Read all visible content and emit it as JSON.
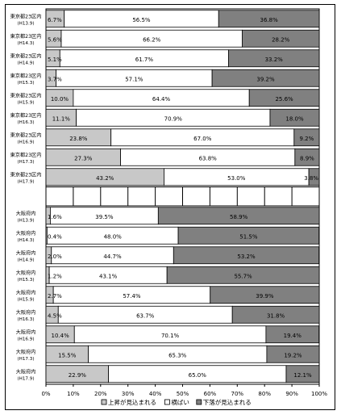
{
  "colors": {
    "rise": "#c8c8c8",
    "flat": "#ffffff",
    "fall": "#808080",
    "stroke": "#000000"
  },
  "chart_data": {
    "type": "bar",
    "orientation": "horizontal",
    "stacked": true,
    "xlim": [
      0,
      100
    ],
    "x_ticks": [
      "0%",
      "10%",
      "20%",
      "30%",
      "40%",
      "50%",
      "60%",
      "70%",
      "80%",
      "90%",
      "100%"
    ],
    "grid": false,
    "legend_position": "bottom",
    "groups": [
      {
        "rows": [
          {
            "label_main": "東京都23区内",
            "label_sub": "(H13.9)",
            "values": [
              6.7,
              56.5,
              36.8
            ],
            "labels": [
              "6.7%",
              "56.5%",
              "36.8%"
            ]
          },
          {
            "label_main": "東京都23区内",
            "label_sub": "(H14.3)",
            "values": [
              5.6,
              66.2,
              28.2
            ],
            "labels": [
              "5.6%",
              "66.2%",
              "28.2%"
            ]
          },
          {
            "label_main": "東京都23区内",
            "label_sub": "(H14.9)",
            "values": [
              5.1,
              61.7,
              33.2
            ],
            "labels": [
              "5.1%",
              "61.7%",
              "33.2%"
            ]
          },
          {
            "label_main": "東京都23区内",
            "label_sub": "(H15.3)",
            "values": [
              3.7,
              57.1,
              39.2
            ],
            "labels": [
              "3.7%",
              "57.1%",
              "39.2%"
            ]
          },
          {
            "label_main": "東京都23区内",
            "label_sub": "(H15.9)",
            "values": [
              10.0,
              64.4,
              25.6
            ],
            "labels": [
              "10.0%",
              "64.4%",
              "25.6%"
            ]
          },
          {
            "label_main": "東京都23区内",
            "label_sub": "(H16.3)",
            "values": [
              11.1,
              70.9,
              18.0
            ],
            "labels": [
              "11.1%",
              "70.9%",
              "18.0%"
            ]
          },
          {
            "label_main": "東京都23区内",
            "label_sub": "(H16.9)",
            "values": [
              23.8,
              67.0,
              9.2
            ],
            "labels": [
              "23.8%",
              "67.0%",
              "9.2%"
            ]
          },
          {
            "label_main": "東京都23区内",
            "label_sub": "(H17.3)",
            "values": [
              27.3,
              63.8,
              8.9
            ],
            "labels": [
              "27.3%",
              "63.8%",
              "8.9%"
            ]
          },
          {
            "label_main": "東京都23区内",
            "label_sub": "(H17.9)",
            "values": [
              43.2,
              53.0,
              3.8
            ],
            "labels": [
              "43.2%",
              "53.0%",
              "3.8%"
            ]
          }
        ]
      },
      {
        "rows": [
          {
            "label_main": "大阪府内",
            "label_sub": "(H13.9)",
            "values": [
              1.6,
              39.5,
              58.9
            ],
            "labels": [
              "1.6%",
              "39.5%",
              "58.9%"
            ]
          },
          {
            "label_main": "大阪府内",
            "label_sub": "(H14.3)",
            "values": [
              0.4,
              48.0,
              51.5
            ],
            "labels": [
              "0.4%",
              "48.0%",
              "51.5%"
            ]
          },
          {
            "label_main": "大阪府内",
            "label_sub": "(H14.9)",
            "values": [
              2.0,
              44.7,
              53.2
            ],
            "labels": [
              "2.0%",
              "44.7%",
              "53.2%"
            ]
          },
          {
            "label_main": "大阪府内",
            "label_sub": "(H15.3)",
            "values": [
              1.2,
              43.1,
              55.7
            ],
            "labels": [
              "1.2%",
              "43.1%",
              "55.7%"
            ]
          },
          {
            "label_main": "大阪府内",
            "label_sub": "(H15.9)",
            "values": [
              2.7,
              57.4,
              39.9
            ],
            "labels": [
              "2.7%",
              "57.4%",
              "39.9%"
            ]
          },
          {
            "label_main": "大阪府内",
            "label_sub": "(H16.3)",
            "values": [
              4.5,
              63.7,
              31.8
            ],
            "labels": [
              "4.5%",
              "63.7%",
              "31.8%"
            ]
          },
          {
            "label_main": "大阪府内",
            "label_sub": "(H16.9)",
            "values": [
              10.4,
              70.1,
              19.4
            ],
            "labels": [
              "10.4%",
              "70.1%",
              "19.4%"
            ]
          },
          {
            "label_main": "大阪府内",
            "label_sub": "(H17.3)",
            "values": [
              15.5,
              65.3,
              19.2
            ],
            "labels": [
              "15.5%",
              "65.3%",
              "19.2%"
            ]
          },
          {
            "label_main": "大阪府内",
            "label_sub": "(H17.9)",
            "values": [
              22.9,
              65.0,
              12.1
            ],
            "labels": [
              "22.9%",
              "65.0%",
              "12.1%"
            ]
          }
        ]
      }
    ],
    "series": [
      {
        "name": "上昇が見込まれる"
      },
      {
        "name": "横ばい"
      },
      {
        "name": "下落が見込まれる"
      }
    ]
  }
}
